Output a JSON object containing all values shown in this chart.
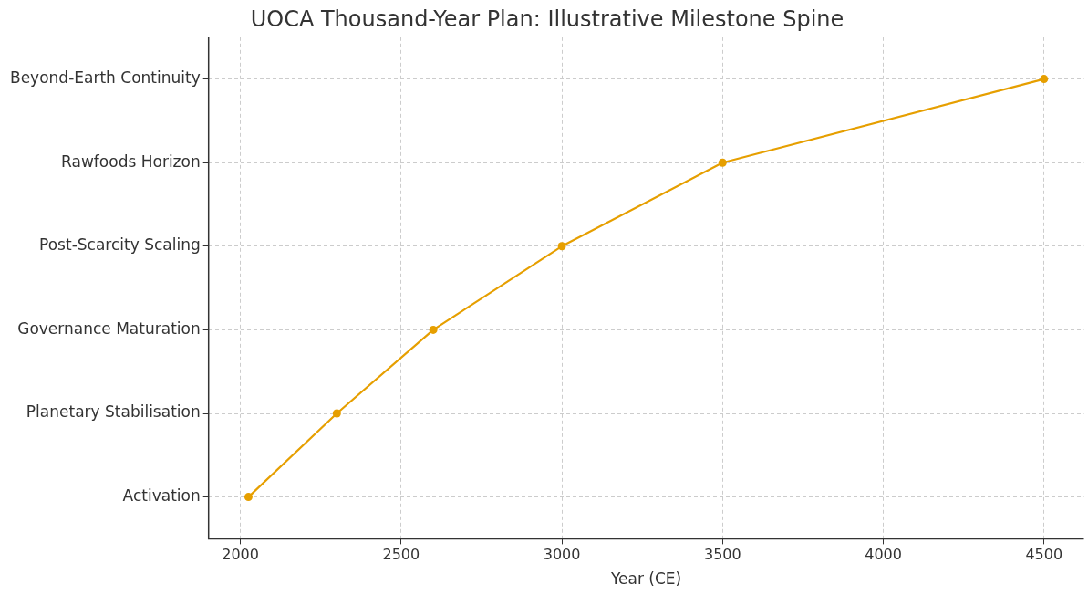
{
  "chart_data": {
    "type": "line",
    "title": "UOCA Thousand-Year Plan: Illustrative Milestone Spine",
    "xlabel": "Year (CE)",
    "orientation": "horizontal",
    "categories": [
      "Beyond-Earth Continuity",
      "Rawfoods Horizon",
      "Post-Scarcity Scaling",
      "Governance Maturation",
      "Planetary Stabilisation",
      "Activation"
    ],
    "series": [
      {
        "color": "#e69f00",
        "values": [
          4500,
          3500,
          3000,
          2600,
          2300,
          2025
        ]
      }
    ],
    "xlim": [
      1901,
      4624
    ],
    "xticks": [
      2000,
      2500,
      3000,
      3500,
      4000,
      4500
    ],
    "grid": true,
    "marker": "circle",
    "line_style": "solid"
  }
}
